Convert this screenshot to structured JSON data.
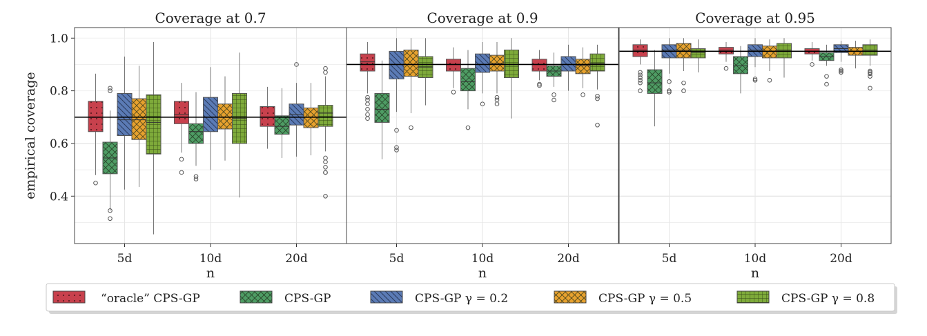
{
  "chart_data": {
    "type": "boxplot",
    "ylabel": "empirical coverage",
    "xlabel": "n",
    "ylim": [
      0.22,
      1.04
    ],
    "yticks": [
      0.4,
      0.6,
      0.8,
      1.0
    ],
    "ytick_labels": [
      "0.4",
      "0.6",
      "0.8",
      "1.0"
    ],
    "categories": [
      "5d",
      "10d",
      "20d"
    ],
    "grid": true,
    "legend_position": "bottom",
    "methods": [
      {
        "id": "oracle",
        "label": "“oracle” CPS-GP",
        "color": "#c8414d",
        "pattern": "dots"
      },
      {
        "id": "cpsgp",
        "label": "CPS-GP",
        "color": "#4e9c64",
        "pattern": "cross"
      },
      {
        "id": "g02",
        "label": "CPS-GP γ = 0.2",
        "color": "#5b7bb5",
        "pattern": "diag"
      },
      {
        "id": "g05",
        "label": "CPS-GP γ = 0.5",
        "color": "#e7a12e",
        "pattern": "cross"
      },
      {
        "id": "g08",
        "label": "CPS-GP γ = 0.8",
        "color": "#7eaa3a",
        "pattern": "grid"
      }
    ],
    "panels": [
      {
        "title": "Coverage at 0.7",
        "target": 0.7,
        "boxes": [
          [
            {
              "min": 0.48,
              "q1": 0.645,
              "med": 0.7,
              "q3": 0.76,
              "max": 0.865,
              "outliers": [
                0.45
              ]
            },
            {
              "min": 0.345,
              "q1": 0.485,
              "med": 0.545,
              "q3": 0.605,
              "max": 0.725,
              "outliers": [
                0.81,
                0.8,
                0.345,
                0.315
              ]
            },
            {
              "min": 0.425,
              "q1": 0.63,
              "med": 0.69,
              "q3": 0.79,
              "max": 0.93,
              "outliers": []
            },
            {
              "min": 0.435,
              "q1": 0.615,
              "med": 0.69,
              "q3": 0.77,
              "max": 0.895,
              "outliers": []
            },
            {
              "min": 0.255,
              "q1": 0.56,
              "med": 0.68,
              "q3": 0.785,
              "max": 0.985,
              "outliers": []
            }
          ],
          [
            {
              "min": 0.565,
              "q1": 0.675,
              "med": 0.71,
              "q3": 0.76,
              "max": 0.83,
              "outliers": [
                0.54,
                0.49
              ]
            },
            {
              "min": 0.515,
              "q1": 0.6,
              "med": 0.645,
              "q3": 0.675,
              "max": 0.795,
              "outliers": [
                0.475,
                0.465
              ]
            },
            {
              "min": 0.5,
              "q1": 0.645,
              "med": 0.7,
              "q3": 0.775,
              "max": 0.89,
              "outliers": []
            },
            {
              "min": 0.535,
              "q1": 0.655,
              "med": 0.7,
              "q3": 0.75,
              "max": 0.855,
              "outliers": []
            },
            {
              "min": 0.395,
              "q1": 0.6,
              "med": 0.695,
              "q3": 0.79,
              "max": 0.945,
              "outliers": []
            }
          ],
          [
            {
              "min": 0.58,
              "q1": 0.665,
              "med": 0.7,
              "q3": 0.74,
              "max": 0.815,
              "outliers": []
            },
            {
              "min": 0.545,
              "q1": 0.635,
              "med": 0.665,
              "q3": 0.705,
              "max": 0.81,
              "outliers": []
            },
            {
              "min": 0.55,
              "q1": 0.67,
              "med": 0.71,
              "q3": 0.75,
              "max": 0.83,
              "outliers": [
                0.9
              ]
            },
            {
              "min": 0.555,
              "q1": 0.66,
              "med": 0.7,
              "q3": 0.735,
              "max": 0.83,
              "outliers": []
            },
            {
              "min": 0.57,
              "q1": 0.665,
              "med": 0.715,
              "q3": 0.745,
              "max": 0.855,
              "outliers": [
                0.885,
                0.87,
                0.545,
                0.53,
                0.51,
                0.49,
                0.49,
                0.4
              ]
            }
          ]
        ]
      },
      {
        "title": "Coverage at 0.9",
        "target": 0.9,
        "boxes": [
          [
            {
              "min": 0.79,
              "q1": 0.875,
              "med": 0.91,
              "q3": 0.94,
              "max": 0.985,
              "outliers": [
                0.775,
                0.765,
                0.75,
                0.73,
                0.71,
                0.695
              ]
            },
            {
              "min": 0.54,
              "q1": 0.68,
              "med": 0.73,
              "q3": 0.79,
              "max": 0.915,
              "outliers": []
            },
            {
              "min": 0.72,
              "q1": 0.845,
              "med": 0.9,
              "q3": 0.95,
              "max": 1.0,
              "outliers": [
                0.65,
                0.585,
                0.575
              ]
            },
            {
              "min": 0.715,
              "q1": 0.855,
              "med": 0.9,
              "q3": 0.955,
              "max": 1.0,
              "outliers": [
                0.66
              ]
            },
            {
              "min": 0.745,
              "q1": 0.85,
              "med": 0.89,
              "q3": 0.93,
              "max": 1.0,
              "outliers": []
            }
          ],
          [
            {
              "min": 0.81,
              "q1": 0.875,
              "med": 0.9,
              "q3": 0.92,
              "max": 0.965,
              "outliers": [
                0.795
              ]
            },
            {
              "min": 0.73,
              "q1": 0.8,
              "med": 0.835,
              "q3": 0.885,
              "max": 0.955,
              "outliers": [
                0.66
              ]
            },
            {
              "min": 0.79,
              "q1": 0.87,
              "med": 0.9,
              "q3": 0.94,
              "max": 0.985,
              "outliers": [
                0.75
              ]
            },
            {
              "min": 0.79,
              "q1": 0.875,
              "med": 0.905,
              "q3": 0.935,
              "max": 0.985,
              "outliers": [
                0.775,
                0.765,
                0.75
              ]
            },
            {
              "min": 0.695,
              "q1": 0.85,
              "med": 0.9,
              "q3": 0.955,
              "max": 1.0,
              "outliers": []
            }
          ],
          [
            {
              "min": 0.84,
              "q1": 0.875,
              "med": 0.9,
              "q3": 0.92,
              "max": 0.955,
              "outliers": [
                0.825,
                0.82
              ]
            },
            {
              "min": 0.815,
              "q1": 0.855,
              "med": 0.875,
              "q3": 0.895,
              "max": 0.945,
              "outliers": [
                0.785,
                0.765
              ]
            },
            {
              "min": 0.8,
              "q1": 0.875,
              "med": 0.9,
              "q3": 0.93,
              "max": 0.975,
              "outliers": []
            },
            {
              "min": 0.81,
              "q1": 0.865,
              "med": 0.895,
              "q3": 0.92,
              "max": 0.965,
              "outliers": [
                0.785
              ]
            },
            {
              "min": 0.805,
              "q1": 0.875,
              "med": 0.905,
              "q3": 0.94,
              "max": 0.975,
              "outliers": [
                0.78,
                0.77,
                0.67
              ]
            }
          ]
        ]
      },
      {
        "title": "Coverage at 0.95",
        "target": 0.95,
        "boxes": [
          [
            {
              "min": 0.9,
              "q1": 0.93,
              "med": 0.955,
              "q3": 0.975,
              "max": 0.995,
              "outliers": [
                0.87,
                0.86,
                0.85,
                0.84,
                0.83,
                0.8
              ]
            },
            {
              "min": 0.665,
              "q1": 0.79,
              "med": 0.83,
              "q3": 0.88,
              "max": 0.955,
              "outliers": []
            },
            {
              "min": 0.865,
              "q1": 0.925,
              "med": 0.955,
              "q3": 0.975,
              "max": 1.0,
              "outliers": [
                0.835,
                0.8,
                0.795
              ]
            },
            {
              "min": 0.875,
              "q1": 0.925,
              "med": 0.955,
              "q3": 0.98,
              "max": 1.0,
              "outliers": [
                0.83,
                0.8
              ]
            },
            {
              "min": 0.87,
              "q1": 0.925,
              "med": 0.945,
              "q3": 0.96,
              "max": 0.995,
              "outliers": []
            }
          ],
          [
            {
              "min": 0.91,
              "q1": 0.94,
              "med": 0.955,
              "q3": 0.965,
              "max": 0.985,
              "outliers": [
                0.885
              ]
            },
            {
              "min": 0.79,
              "q1": 0.865,
              "med": 0.895,
              "q3": 0.93,
              "max": 0.97,
              "outliers": []
            },
            {
              "min": 0.89,
              "q1": 0.93,
              "med": 0.955,
              "q3": 0.975,
              "max": 1.0,
              "outliers": [
                0.845,
                0.84
              ]
            },
            {
              "min": 0.875,
              "q1": 0.925,
              "med": 0.95,
              "q3": 0.97,
              "max": 0.995,
              "outliers": [
                0.84
              ]
            },
            {
              "min": 0.85,
              "q1": 0.925,
              "med": 0.955,
              "q3": 0.98,
              "max": 1.0,
              "outliers": []
            }
          ],
          [
            {
              "min": 0.915,
              "q1": 0.94,
              "med": 0.95,
              "q3": 0.96,
              "max": 0.985,
              "outliers": [
                0.9
              ]
            },
            {
              "min": 0.895,
              "q1": 0.915,
              "med": 0.93,
              "q3": 0.945,
              "max": 0.975,
              "outliers": [
                0.855,
                0.825
              ]
            },
            {
              "min": 0.91,
              "q1": 0.945,
              "med": 0.96,
              "q3": 0.975,
              "max": 0.99,
              "outliers": [
                0.88,
                0.875,
                0.87
              ]
            },
            {
              "min": 0.885,
              "q1": 0.935,
              "med": 0.95,
              "q3": 0.965,
              "max": 0.99,
              "outliers": []
            },
            {
              "min": 0.895,
              "q1": 0.935,
              "med": 0.955,
              "q3": 0.975,
              "max": 0.995,
              "outliers": [
                0.875,
                0.87,
                0.865,
                0.855,
                0.81
              ]
            }
          ]
        ]
      }
    ]
  }
}
